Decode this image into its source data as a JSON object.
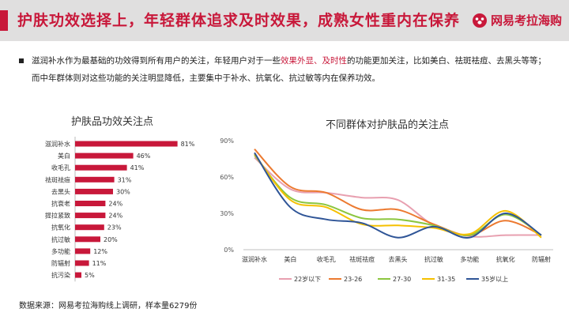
{
  "header": {
    "title": "护肤功效选择上，年轻群体追求及时效果，成熟女性重内在保养",
    "brand": "网易考拉海购",
    "accent_color": "#c8183a"
  },
  "intro": {
    "part1": "滋润补水作为最基础的功效得到所有用户的关注，年轻用户对于一些",
    "highlight": "效果外显、及时性",
    "part2": "的功能更加关注，比如美白、祛斑祛痘、去黑头等等；而中年群体则对这些功能的关注明显降低，主要集中于补水、抗氧化、抗过敏等内在保养功效。"
  },
  "source": "数据来源：网易考拉海购线上调研，样本量6279份",
  "chart_data": [
    {
      "type": "bar",
      "orientation": "horizontal",
      "title": "护肤品功效关注点",
      "color": "#c8183a",
      "categories": [
        "滋润补水",
        "美白",
        "收毛孔",
        "祛斑祛痘",
        "去黑头",
        "抗衰老",
        "提拉紧致",
        "抗氧化",
        "抗过敏",
        "多功能",
        "防辐射",
        "抗污染"
      ],
      "values": [
        81,
        46,
        41,
        31,
        30,
        24,
        24,
        23,
        20,
        12,
        11,
        5
      ],
      "value_labels": [
        "81%",
        "46%",
        "41%",
        "31%",
        "30%",
        "24%",
        "24%",
        "23%",
        "20%",
        "12%",
        "11%",
        "5%"
      ],
      "xlim": [
        0,
        100
      ]
    },
    {
      "type": "line",
      "title": "不同群体对护肤品的关注点",
      "categories": [
        "滋润补水",
        "美白",
        "收毛孔",
        "祛斑祛痘",
        "去黑头",
        "抗过敏",
        "多功能",
        "抗氧化",
        "防辐射"
      ],
      "ylim": [
        0,
        90
      ],
      "yticks": [
        0,
        30,
        60,
        90
      ],
      "ytick_labels": [
        "0%",
        "30%",
        "60%",
        "90%"
      ],
      "legend_position": "bottom",
      "series": [
        {
          "name": "22岁以下",
          "color": "#e8a0b0",
          "values": [
            76,
            50,
            47,
            43,
            41,
            20,
            11,
            12,
            12
          ]
        },
        {
          "name": "23-26",
          "color": "#ec7a30",
          "values": [
            83,
            52,
            47,
            33,
            33,
            21,
            12,
            24,
            12
          ]
        },
        {
          "name": "27-30",
          "color": "#8cc63f",
          "values": [
            78,
            43,
            37,
            26,
            25,
            20,
            12,
            29,
            12
          ]
        },
        {
          "name": "31-35",
          "color": "#f5c000",
          "values": [
            79,
            41,
            35,
            21,
            20,
            18,
            13,
            32,
            10
          ]
        },
        {
          "name": "35岁以上",
          "color": "#2f5597",
          "values": [
            80,
            35,
            25,
            22,
            10,
            19,
            10,
            30,
            12
          ]
        }
      ]
    }
  ]
}
